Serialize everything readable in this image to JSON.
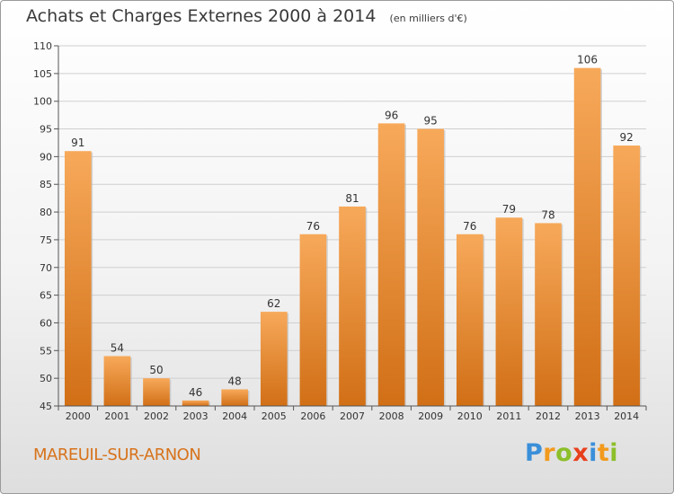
{
  "header": {
    "title": "Achats et Charges Externes 2000 à 2014",
    "unit": "(en milliers d'€)"
  },
  "footer": {
    "place": "MAREUIL-SUR-ARNON",
    "brand_letters": [
      {
        "char": "P",
        "color": "#3a8fd9"
      },
      {
        "char": "r",
        "color": "#f29a1d"
      },
      {
        "char": "o",
        "color": "#8cbf2a"
      },
      {
        "char": "x",
        "color": "#e8401c"
      },
      {
        "char": "i",
        "color": "#3a8fd9"
      },
      {
        "char": "t",
        "color": "#f29a1d"
      },
      {
        "char": "i",
        "color": "#8cbf2a"
      }
    ]
  },
  "colors": {
    "bar_light": "#f7a95a",
    "bar_dark": "#d16f16",
    "grid": "#cfcfcf",
    "axis": "#555555",
    "text": "#333333"
  },
  "chart_data": {
    "type": "bar",
    "title": "Achats et Charges Externes 2000 à 2014",
    "xlabel": "",
    "ylabel": "",
    "categories": [
      "2000",
      "2001",
      "2002",
      "2003",
      "2004",
      "2005",
      "2006",
      "2007",
      "2008",
      "2009",
      "2010",
      "2011",
      "2012",
      "2013",
      "2014"
    ],
    "values": [
      91,
      54,
      50,
      46,
      48,
      62,
      76,
      81,
      96,
      95,
      76,
      79,
      78,
      106,
      92
    ],
    "ylim": [
      45,
      110
    ],
    "yticks": [
      45,
      50,
      55,
      60,
      65,
      70,
      75,
      80,
      85,
      90,
      95,
      100,
      105,
      110
    ],
    "grid": true,
    "data_labels": true
  }
}
